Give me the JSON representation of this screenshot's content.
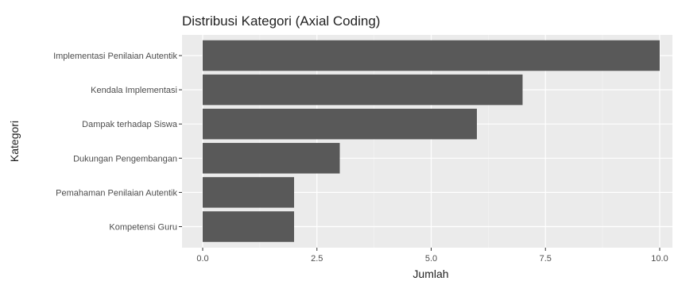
{
  "chart_data": {
    "type": "bar",
    "orientation": "horizontal",
    "title": "Distribusi Kategori (Axial Coding)",
    "xlabel": "Jumlah",
    "ylabel": "Kategori",
    "categories": [
      "Implementasi Penilaian Autentik",
      "Kendala Implementasi",
      "Dampak terhadap Siswa",
      "Dukungan Pengembangan",
      "Pemahaman Penilaian Autentik",
      "Kompetensi Guru"
    ],
    "values": [
      10,
      7,
      6,
      3,
      2,
      2
    ],
    "xlim": [
      0,
      10
    ],
    "x_ticks": [
      0,
      2.5,
      5,
      7.5,
      10
    ],
    "x_tick_labels": [
      "0.0",
      "2.5",
      "5.0",
      "7.5",
      "10.0"
    ],
    "grid": true,
    "bar_color": "#595959",
    "panel_color": "#ebebeb"
  }
}
